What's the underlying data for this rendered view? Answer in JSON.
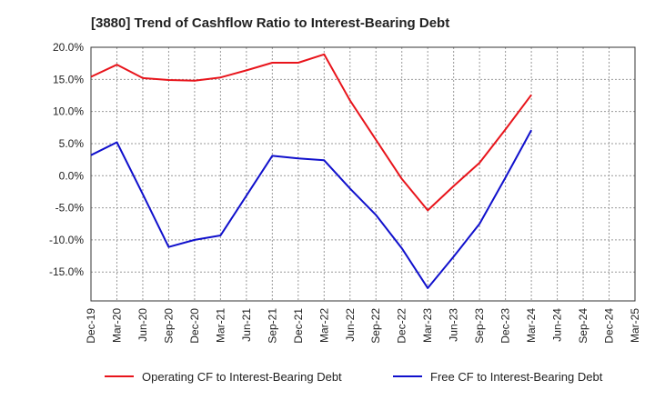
{
  "chart_data": {
    "type": "line",
    "title": "[3880]  Trend of Cashflow Ratio to Interest-Bearing Debt",
    "xlabel": "",
    "ylabel": "",
    "categories": [
      "Dec-19",
      "Mar-20",
      "Jun-20",
      "Sep-20",
      "Dec-20",
      "Mar-21",
      "Jun-21",
      "Sep-21",
      "Dec-21",
      "Mar-22",
      "Jun-22",
      "Sep-22",
      "Dec-22",
      "Mar-23",
      "Jun-23",
      "Sep-23",
      "Dec-23",
      "Mar-24",
      "Jun-24",
      "Sep-24",
      "Dec-24",
      "Mar-25"
    ],
    "ylim": [
      -19.5,
      20.0
    ],
    "yticks": [
      20.0,
      15.0,
      10.0,
      5.0,
      0.0,
      -5.0,
      -10.0,
      -15.0
    ],
    "ytick_labels": [
      "20.0%",
      "15.0%",
      "10.0%",
      "5.0%",
      "0.0%",
      "-5.0%",
      "-10.0%",
      "-15.0%"
    ],
    "grid": true,
    "legend_position": "bottom",
    "series": [
      {
        "name": "Operating CF to Interest-Bearing Debt",
        "color": "#e8141b",
        "values": [
          15.4,
          17.3,
          15.2,
          14.9,
          14.8,
          15.3,
          16.4,
          17.6,
          17.6,
          18.9,
          11.7,
          5.6,
          -0.5,
          -5.4,
          -1.6,
          2.0,
          7.2,
          12.6,
          null,
          null,
          null,
          null
        ]
      },
      {
        "name": "Free CF to Interest-Bearing Debt",
        "color": "#1010cc",
        "values": [
          3.2,
          5.2,
          -2.9,
          -11.1,
          -10.0,
          -9.3,
          -3.1,
          3.1,
          2.7,
          2.4,
          -2.0,
          -6.1,
          -11.3,
          -17.5,
          -12.6,
          -7.5,
          -0.3,
          7.1,
          null,
          null,
          null,
          null
        ]
      }
    ]
  }
}
